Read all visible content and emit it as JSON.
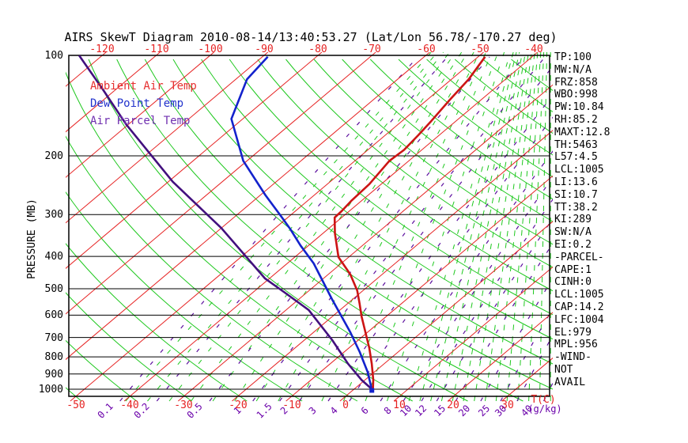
{
  "title": "AIRS SkewT Diagram 2010-08-14/13:40:53.27 (Lat/Lon 56.78/-170.27 deg)",
  "legend": {
    "ambient_label": "Ambient Air Temp",
    "dew_label": "Dew Point Temp",
    "parcel_label": "Air Parcel Temp"
  },
  "right_panel": {
    "items": [
      "TP:100",
      "MW:N/A",
      "FRZ:858",
      "WBO:998",
      "PW:10.84",
      "RH:85.2",
      "MAXT:12.8",
      "TH:5463",
      "L57:4.5",
      "LCL:1005",
      "LI:13.6",
      "SI:10.7",
      "TT:38.2",
      "KI:289",
      "SW:N/A",
      "EI:0.2",
      "-PARCEL-",
      "CAPE:1",
      "CINH:0",
      "LCL:1005",
      "CAP:14.2",
      "LFC:1004",
      "EL:979",
      "MPL:956",
      "-WIND-",
      "NOT",
      "AVAIL"
    ]
  },
  "colors": {
    "isotherm": "#e62222",
    "dry_adiabat": "#1ec81e",
    "moist_adiabat": "#1ec81e",
    "mixing_ratio": "#5c0f9e",
    "ambient": "#cc1414",
    "dew": "#1322cc",
    "parcel": "#42107e",
    "legend_ambient": "#e63030",
    "legend_dew": "#2233cc",
    "legend_parcel": "#7030b0",
    "frame": "#000000",
    "label_red": "#e62222",
    "label_purple": "#6a00aa",
    "label_black": "#000000"
  },
  "chart_data": {
    "type": "line",
    "subtype": "skew-t-log-p",
    "title": "AIRS SkewT Diagram 2010-08-14/13:40:53.27 (Lat/Lon 56.78/-170.27 deg)",
    "xlabel": "T(C)",
    "ylabel": "PRESSURE (MB)",
    "mixing_unit_label": "(g/kg)",
    "pressure_ticks": [
      100,
      200,
      300,
      400,
      500,
      600,
      700,
      800,
      900,
      1000
    ],
    "pressure_range": [
      100,
      1050
    ],
    "top_temp_labels": [
      -120,
      -110,
      -100,
      -90,
      -80,
      -70,
      -60,
      -50,
      -40
    ],
    "bottom_temp_labels": [
      -50,
      -40,
      -30,
      -20,
      -10,
      0,
      10,
      20,
      30
    ],
    "isotherms_c": {
      "from": -120,
      "to": 40,
      "step": 10
    },
    "dry_adiabats_k": {
      "from": 210,
      "to": 440,
      "step": 10
    },
    "mixing_ratio_lines_gkg": [
      0.1,
      0.2,
      0.5,
      1,
      1.5,
      2,
      3,
      4,
      6,
      8,
      10,
      12,
      15,
      20,
      25,
      30,
      40
    ],
    "mixing_ratio_labels": [
      "0.1",
      "0.2",
      "0.5",
      "1",
      "1.5",
      "2",
      "3",
      "4",
      "6",
      "8",
      "10",
      "12",
      "15",
      "20",
      "25",
      "30",
      "40"
    ],
    "moist_adiabat_fan_c": {
      "cold": {
        "from": -40,
        "to": 12,
        "step": 4
      },
      "warm": {
        "from": 14,
        "to": 38,
        "step": 2
      }
    },
    "series": [
      {
        "name": "Ambient Air Temp",
        "color_key": "ambient",
        "points_p_t": [
          [
            1003,
            3.6
          ],
          [
            937,
            1.5
          ],
          [
            839,
            -2.3
          ],
          [
            753,
            -6.2
          ],
          [
            675,
            -10.4
          ],
          [
            605,
            -14.6
          ],
          [
            552,
            -17.9
          ],
          [
            506,
            -21.1
          ],
          [
            453,
            -25.9
          ],
          [
            402,
            -31.9
          ],
          [
            341,
            -37.8
          ],
          [
            306,
            -41.3
          ],
          [
            293,
            -41.4
          ],
          [
            272,
            -41.9
          ],
          [
            243,
            -42.2
          ],
          [
            207,
            -43.6
          ],
          [
            192,
            -43.3
          ],
          [
            173,
            -43.9
          ],
          [
            157,
            -44.6
          ],
          [
            136,
            -45.8
          ],
          [
            118,
            -46.8
          ],
          [
            101,
            -48.7
          ]
        ]
      },
      {
        "name": "Dew Point Temp",
        "color_key": "dew",
        "points_p_t": [
          [
            1003,
            3.4
          ],
          [
            887,
            -1.3
          ],
          [
            774,
            -7.1
          ],
          [
            675,
            -13.2
          ],
          [
            537,
            -23.9
          ],
          [
            420,
            -35.1
          ],
          [
            371,
            -41.5
          ],
          [
            332,
            -46.9
          ],
          [
            304,
            -51.4
          ],
          [
            262,
            -59.1
          ],
          [
            207,
            -70.7
          ],
          [
            155,
            -82.1
          ],
          [
            118,
            -87.9
          ],
          [
            101,
            -89.0
          ]
        ]
      },
      {
        "name": "Air Parcel Temp",
        "color_key": "parcel",
        "points_p_t": [
          [
            1003,
            3.5
          ],
          [
            937,
            -0.7
          ],
          [
            839,
            -6.7
          ],
          [
            713,
            -14.8
          ],
          [
            579,
            -25.8
          ],
          [
            514,
            -34.0
          ],
          [
            466,
            -40.8
          ],
          [
            329,
            -60.0
          ],
          [
            239,
            -79.2
          ],
          [
            161,
            -100.4
          ],
          [
            126,
            -112.6
          ],
          [
            100,
            -124.3
          ]
        ]
      }
    ],
    "surface_marker": {
      "series": "Dew Point Temp",
      "p": 1003,
      "t": 3.4
    }
  }
}
